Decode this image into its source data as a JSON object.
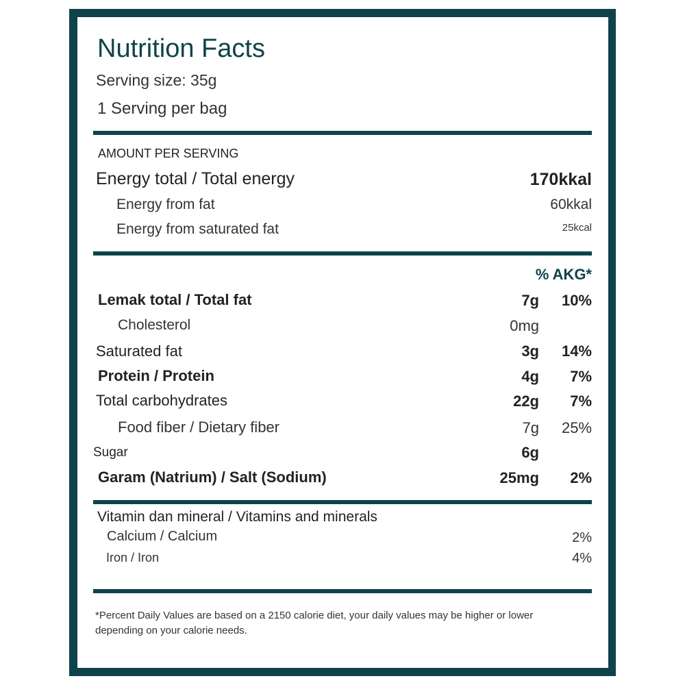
{
  "title": "Nutrition Facts",
  "serving_size": "Serving size: 35g",
  "servings_per_container": "1 Serving per bag",
  "amount_per_serving": "AMOUNT PER SERVING",
  "energy": {
    "total": {
      "label": "Energy total / Total energy",
      "value": "170kkal"
    },
    "from_fat": {
      "label": "Energy from fat",
      "value": "60kkal"
    },
    "from_saturated_fat": {
      "label": "Energy from saturated fat",
      "value": "25kcal"
    }
  },
  "akg_header": "% AKG*",
  "nutrients": [
    {
      "label": "Lemak total / Total fat",
      "amount": "7g",
      "percent": "10%"
    },
    {
      "label": "Cholesterol",
      "amount": "0mg",
      "percent": ""
    },
    {
      "label": "Saturated fat",
      "amount": "3g",
      "percent": "14%"
    },
    {
      "label": "Protein / Protein",
      "amount": "4g",
      "percent": "7%"
    },
    {
      "label": "Total carbohydrates",
      "amount": "22g",
      "percent": "7%"
    },
    {
      "label": "Food fiber / Dietary fiber",
      "amount": "7g",
      "percent": "25%"
    },
    {
      "label": "Sugar",
      "amount": "6g",
      "percent": ""
    },
    {
      "label": "Garam (Natrium) / Salt (Sodium)",
      "amount": "25mg",
      "percent": "2%"
    }
  ],
  "vitamins": {
    "header": "Vitamin dan mineral / Vitamins and minerals",
    "items": [
      {
        "label": "Calcium / Calcium",
        "percent": "2%"
      },
      {
        "label": "Iron / Iron",
        "percent": "4%"
      }
    ]
  },
  "footnote_line1": "*Percent Daily Values are based on a 2150 calorie diet, your daily values may be higher or lower",
  "footnote_line2": "depending on your calorie needs.",
  "colors": {
    "frame": "#0e434b",
    "text": "#222222",
    "accent": "#0e434b"
  }
}
